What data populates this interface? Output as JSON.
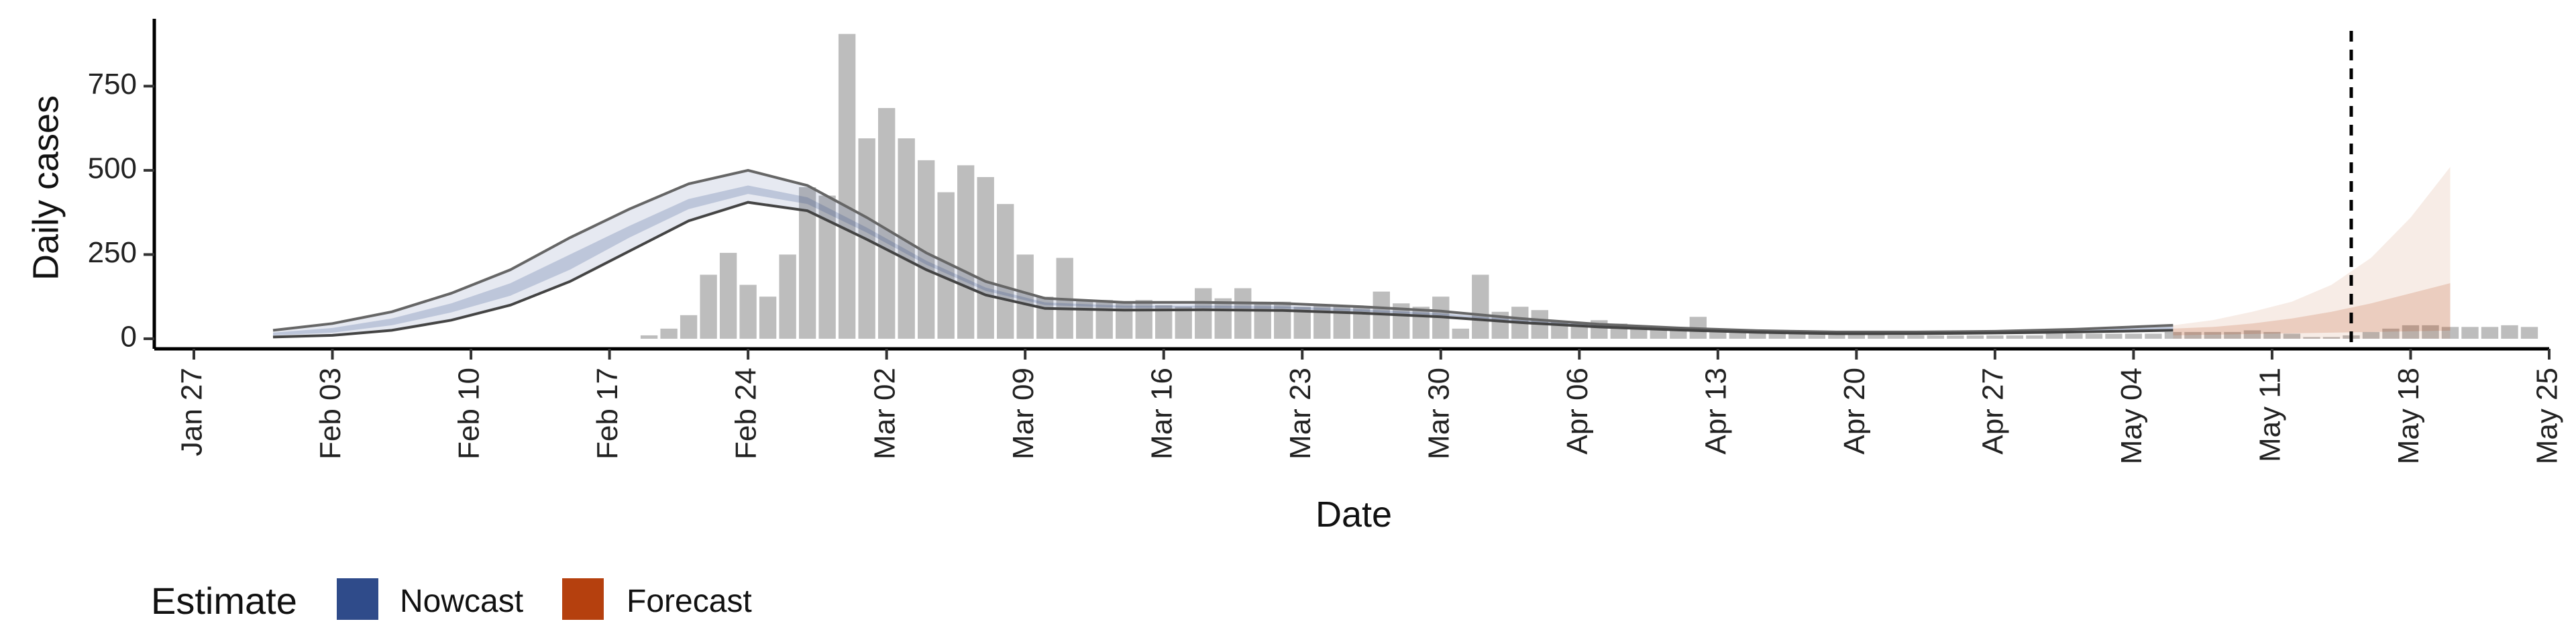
{
  "chart_data": {
    "type": "bar",
    "xlabel": "Date",
    "ylabel": "Daily cases",
    "ylim": [
      -30,
      950
    ],
    "xlim": [
      "2020-01-25",
      "2020-05-25"
    ],
    "yticks": [
      0,
      250,
      500,
      750
    ],
    "xticks": [
      {
        "date": "2020-01-27",
        "label": "Jan 27"
      },
      {
        "date": "2020-02-03",
        "label": "Feb 03"
      },
      {
        "date": "2020-02-10",
        "label": "Feb 10"
      },
      {
        "date": "2020-02-17",
        "label": "Feb 17"
      },
      {
        "date": "2020-02-24",
        "label": "Feb 24"
      },
      {
        "date": "2020-03-02",
        "label": "Mar 02"
      },
      {
        "date": "2020-03-09",
        "label": "Mar 09"
      },
      {
        "date": "2020-03-16",
        "label": "Mar 16"
      },
      {
        "date": "2020-03-23",
        "label": "Mar 23"
      },
      {
        "date": "2020-03-30",
        "label": "Mar 30"
      },
      {
        "date": "2020-04-06",
        "label": "Apr 06"
      },
      {
        "date": "2020-04-13",
        "label": "Apr 13"
      },
      {
        "date": "2020-04-20",
        "label": "Apr 20"
      },
      {
        "date": "2020-04-27",
        "label": "Apr 27"
      },
      {
        "date": "2020-05-04",
        "label": "May 04"
      },
      {
        "date": "2020-05-11",
        "label": "May 11"
      },
      {
        "date": "2020-05-18",
        "label": "May 18"
      },
      {
        "date": "2020-05-25",
        "label": "May 25"
      }
    ],
    "grid": false,
    "vline_date": "2020-05-15",
    "bars": {
      "color": "#bdbdbd",
      "start_date": "2020-02-19",
      "values": [
        10,
        30,
        70,
        190,
        255,
        160,
        125,
        250,
        450,
        425,
        905,
        595,
        685,
        595,
        530,
        435,
        515,
        480,
        400,
        250,
        125,
        240,
        115,
        115,
        110,
        115,
        100,
        95,
        150,
        120,
        150,
        110,
        110,
        95,
        100,
        100,
        95,
        140,
        105,
        95,
        125,
        30,
        190,
        80,
        95,
        85,
        50,
        45,
        55,
        45,
        35,
        30,
        30,
        65,
        25,
        25,
        25,
        20,
        20,
        20,
        15,
        15,
        15,
        10,
        10,
        10,
        10,
        10,
        10,
        10,
        10,
        15,
        15,
        15,
        15,
        15,
        15,
        20,
        20,
        20,
        20,
        25,
        20,
        15,
        5,
        5,
        10,
        20,
        30,
        40,
        40,
        35,
        35,
        35,
        40,
        35
      ]
    },
    "nowcast": {
      "color": "#2f4b8a",
      "dates": [
        "2020-01-31",
        "2020-02-03",
        "2020-02-06",
        "2020-02-09",
        "2020-02-12",
        "2020-02-15",
        "2020-02-18",
        "2020-02-21",
        "2020-02-24",
        "2020-02-27",
        "2020-03-01",
        "2020-03-04",
        "2020-03-07",
        "2020-03-10",
        "2020-03-14",
        "2020-03-18",
        "2020-03-22",
        "2020-03-26",
        "2020-03-30",
        "2020-04-03",
        "2020-04-07",
        "2020-04-11",
        "2020-04-15",
        "2020-04-19",
        "2020-04-23",
        "2020-04-27",
        "2020-05-01",
        "2020-05-06"
      ],
      "upper": [
        25,
        45,
        80,
        135,
        205,
        300,
        385,
        460,
        500,
        455,
        360,
        255,
        170,
        120,
        108,
        108,
        105,
        95,
        82,
        60,
        43,
        32,
        24,
        20,
        20,
        22,
        28,
        40
      ],
      "lower": [
        5,
        10,
        25,
        55,
        100,
        170,
        260,
        350,
        405,
        380,
        295,
        205,
        130,
        90,
        85,
        86,
        84,
        76,
        65,
        48,
        35,
        26,
        19,
        15,
        15,
        17,
        20,
        25
      ],
      "inner_upper": [
        18,
        32,
        60,
        105,
        165,
        250,
        335,
        415,
        455,
        420,
        330,
        232,
        152,
        108,
        98,
        98,
        96,
        87,
        75,
        55,
        40,
        30,
        22,
        18,
        18,
        20,
        25,
        35
      ],
      "inner_lower": [
        10,
        18,
        40,
        78,
        128,
        205,
        300,
        385,
        430,
        400,
        315,
        220,
        142,
        100,
        92,
        92,
        90,
        81,
        70,
        52,
        37,
        28,
        20,
        16,
        16,
        18,
        22,
        28
      ]
    },
    "forecast": {
      "color": "#b5400e",
      "dates": [
        "2020-05-06",
        "2020-05-08",
        "2020-05-10",
        "2020-05-12",
        "2020-05-14",
        "2020-05-16",
        "2020-05-18",
        "2020-05-20"
      ],
      "outer_upper": [
        40,
        55,
        80,
        110,
        160,
        240,
        360,
        510
      ],
      "outer_lower": [
        0,
        0,
        0,
        0,
        0,
        0,
        0,
        0
      ],
      "inner_upper": [
        30,
        35,
        45,
        60,
        80,
        105,
        135,
        165
      ],
      "inner_lower": [
        10,
        12,
        14,
        16,
        18,
        20,
        22,
        24
      ]
    }
  },
  "legend": {
    "title": "Estimate",
    "items": [
      {
        "label": "Nowcast",
        "color": "#2f4b8a"
      },
      {
        "label": "Forecast",
        "color": "#b5400e"
      }
    ]
  }
}
